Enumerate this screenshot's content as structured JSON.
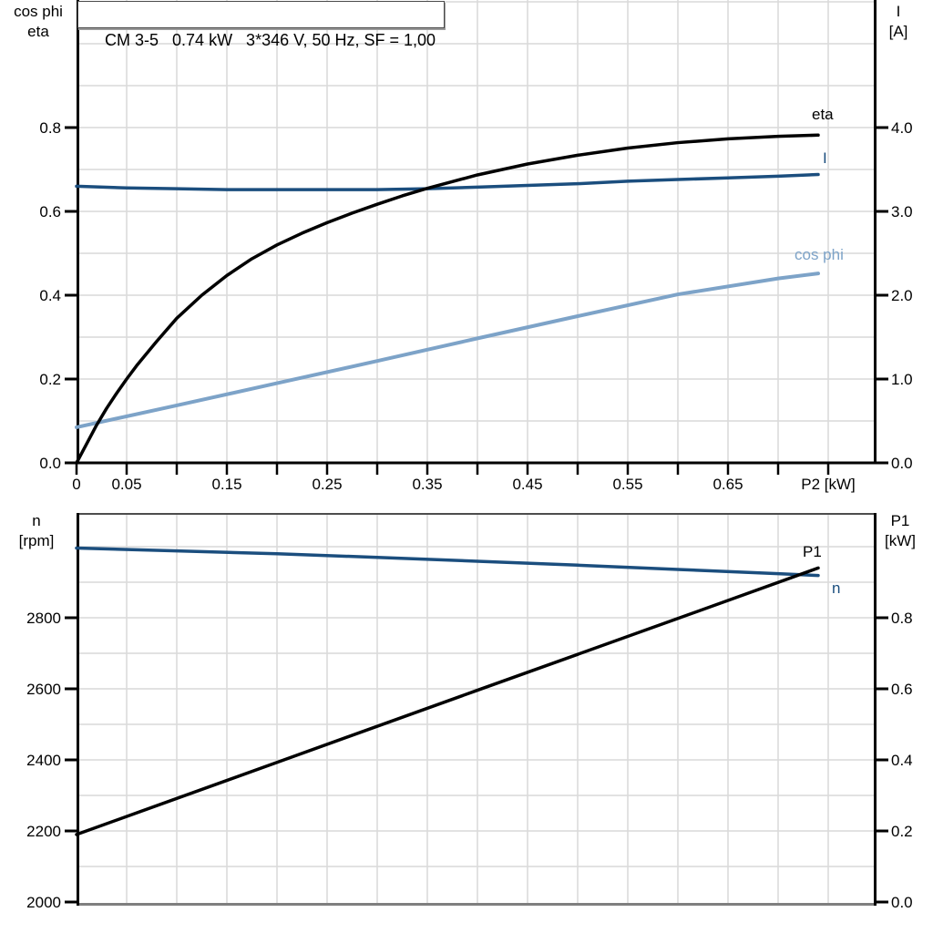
{
  "colors": {
    "black": "#000000",
    "dark_blue": "#1b4e7e",
    "light_blue": "#7da3c8",
    "grid": "#d9d9d9",
    "axis": "#000000",
    "frame_top": "#4d4d4d",
    "frame_bottom": "#7f7f7f"
  },
  "chart_data": [
    {
      "type": "line",
      "title": "CM 3-5   0.74 kW   3*346 V, 50 Hz, SF = 1,00",
      "x_axis": {
        "label": "P2 [kW]",
        "min": 0,
        "max": 0.8,
        "grid_step": 0.05,
        "ticks": [
          {
            "v": 0,
            "label": "0"
          },
          {
            "v": 0.05,
            "label": "0.05"
          },
          {
            "v": 0.1,
            "label": ""
          },
          {
            "v": 0.15,
            "label": "0.15"
          },
          {
            "v": 0.2,
            "label": ""
          },
          {
            "v": 0.25,
            "label": "0.25"
          },
          {
            "v": 0.3,
            "label": ""
          },
          {
            "v": 0.35,
            "label": "0.35"
          },
          {
            "v": 0.4,
            "label": ""
          },
          {
            "v": 0.45,
            "label": "0.45"
          },
          {
            "v": 0.5,
            "label": ""
          },
          {
            "v": 0.55,
            "label": "0.55"
          },
          {
            "v": 0.6,
            "label": ""
          },
          {
            "v": 0.65,
            "label": "0.65"
          },
          {
            "v": 0.7,
            "label": ""
          },
          {
            "v": 0.75,
            "label": "P2 [kW]"
          }
        ]
      },
      "y_left": {
        "title_line1": "cos phi",
        "title_line2": "eta",
        "min": 0,
        "max": 1.1,
        "grid_step": 0.1,
        "ticks": [
          {
            "v": 0.0,
            "label": "0.0"
          },
          {
            "v": 0.2,
            "label": "0.2"
          },
          {
            "v": 0.4,
            "label": "0.4"
          },
          {
            "v": 0.6,
            "label": "0.6"
          },
          {
            "v": 0.8,
            "label": "0.8"
          }
        ]
      },
      "y_right": {
        "title_line1": "I",
        "title_line2": "[A]",
        "min": 0,
        "max": 5.5,
        "ticks": [
          {
            "v": 0,
            "label": "0.0"
          },
          {
            "v": 1,
            "label": "1.0"
          },
          {
            "v": 2,
            "label": "2.0"
          },
          {
            "v": 3,
            "label": "3.0"
          },
          {
            "v": 4,
            "label": "4.0"
          }
        ]
      },
      "series": [
        {
          "name": "eta",
          "axis": "left",
          "color": "black",
          "points": [
            [
              0,
              0
            ],
            [
              0.01,
              0.045
            ],
            [
              0.02,
              0.09
            ],
            [
              0.03,
              0.13
            ],
            [
              0.04,
              0.166
            ],
            [
              0.05,
              0.2
            ],
            [
              0.06,
              0.232
            ],
            [
              0.08,
              0.29
            ],
            [
              0.1,
              0.345
            ],
            [
              0.125,
              0.4
            ],
            [
              0.15,
              0.447
            ],
            [
              0.175,
              0.487
            ],
            [
              0.2,
              0.52
            ],
            [
              0.225,
              0.548
            ],
            [
              0.25,
              0.573
            ],
            [
              0.275,
              0.596
            ],
            [
              0.3,
              0.617
            ],
            [
              0.325,
              0.637
            ],
            [
              0.35,
              0.655
            ],
            [
              0.375,
              0.671
            ],
            [
              0.4,
              0.687
            ],
            [
              0.45,
              0.713
            ],
            [
              0.5,
              0.734
            ],
            [
              0.55,
              0.751
            ],
            [
              0.6,
              0.764
            ],
            [
              0.65,
              0.773
            ],
            [
              0.7,
              0.779
            ],
            [
              0.74,
              0.782
            ]
          ]
        },
        {
          "name": "I",
          "axis": "right",
          "color": "dark_blue",
          "points": [
            [
              0,
              3.3
            ],
            [
              0.05,
              3.28
            ],
            [
              0.1,
              3.27
            ],
            [
              0.15,
              3.26
            ],
            [
              0.2,
              3.26
            ],
            [
              0.25,
              3.26
            ],
            [
              0.3,
              3.26
            ],
            [
              0.35,
              3.27
            ],
            [
              0.4,
              3.29
            ],
            [
              0.45,
              3.31
            ],
            [
              0.5,
              3.33
            ],
            [
              0.55,
              3.36
            ],
            [
              0.6,
              3.38
            ],
            [
              0.65,
              3.4
            ],
            [
              0.7,
              3.42
            ],
            [
              0.74,
              3.44
            ]
          ]
        },
        {
          "name": "cos phi",
          "axis": "left",
          "color": "light_blue",
          "points": [
            [
              0,
              0.085
            ],
            [
              0.1,
              0.137
            ],
            [
              0.2,
              0.19
            ],
            [
              0.3,
              0.243
            ],
            [
              0.4,
              0.297
            ],
            [
              0.5,
              0.35
            ],
            [
              0.6,
              0.402
            ],
            [
              0.7,
              0.44
            ],
            [
              0.74,
              0.452
            ]
          ]
        }
      ]
    },
    {
      "type": "line",
      "title": "",
      "x_axis": {
        "label": "",
        "min": 0,
        "max": 0.8,
        "grid_step": 0.05,
        "ticks": []
      },
      "y_left": {
        "title_line1": "n",
        "title_line2": "[rpm]",
        "min": 2000,
        "max": 3095,
        "grid_step": 100,
        "ticks": [
          {
            "v": 2000,
            "label": "2000"
          },
          {
            "v": 2200,
            "label": "2200"
          },
          {
            "v": 2400,
            "label": "2400"
          },
          {
            "v": 2600,
            "label": "2600"
          },
          {
            "v": 2800,
            "label": "2800"
          }
        ]
      },
      "y_right": {
        "title_line1": "P1",
        "title_line2": "[kW]",
        "min": 0,
        "max": 1.1,
        "ticks": [
          {
            "v": 0.0,
            "label": "0.0"
          },
          {
            "v": 0.2,
            "label": "0.2"
          },
          {
            "v": 0.4,
            "label": "0.4"
          },
          {
            "v": 0.6,
            "label": "0.6"
          },
          {
            "v": 0.8,
            "label": "0.8"
          }
        ]
      },
      "series": [
        {
          "name": "n",
          "axis": "left",
          "color": "dark_blue",
          "points": [
            [
              0,
              2996
            ],
            [
              0.1,
              2988
            ],
            [
              0.2,
              2980
            ],
            [
              0.3,
              2970
            ],
            [
              0.4,
              2959
            ],
            [
              0.5,
              2948
            ],
            [
              0.6,
              2936
            ],
            [
              0.7,
              2924
            ],
            [
              0.74,
              2919
            ]
          ]
        },
        {
          "name": "P1",
          "axis": "right",
          "color": "black",
          "points": [
            [
              0,
              0.19
            ],
            [
              0.2,
              0.393
            ],
            [
              0.4,
              0.596
            ],
            [
              0.6,
              0.798
            ],
            [
              0.74,
              0.94
            ]
          ]
        }
      ]
    }
  ]
}
